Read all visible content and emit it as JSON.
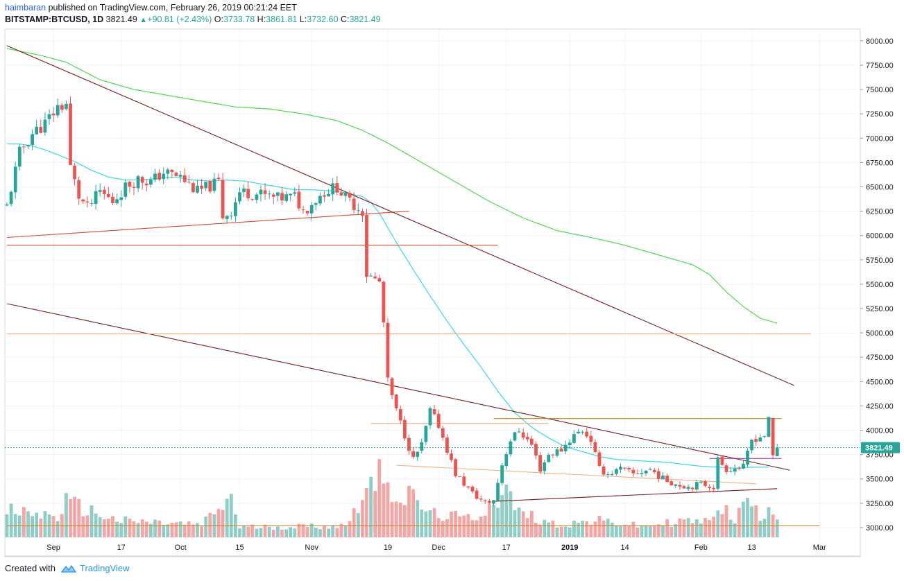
{
  "header": {
    "author": "haimbaran",
    "published_text": "published on TradingView.com, February 26, 2019 00:21:24 EET",
    "symbol": "BITSTAMP:BTCUSD, 1D",
    "last": "3821.49",
    "change": "+90.81 (+2.43%)",
    "o_label": "O:",
    "o_value": "3733.78",
    "h_label": "H:",
    "h_value": "3861.81",
    "l_label": "L:",
    "l_value": "3732.60",
    "c_label": "C:",
    "c_value": "3821.49"
  },
  "footer": {
    "created_with": "Created with",
    "brand": "TradingView"
  },
  "colors": {
    "up": "#26a69a",
    "down": "#ef5350",
    "vol_up": "#8fcdc7",
    "vol_down": "#f5a5a3",
    "ma50": "#34d8e6",
    "ma200": "#4cd94c",
    "trend_dark": "#7b1a1a",
    "trend_red": "#d84a2c",
    "level_orange": "#f5b07a",
    "level_gold": "#b8860b",
    "last_price": "#26a69a"
  },
  "chart_data": {
    "type": "candlestick",
    "title": "BITSTAMP:BTCUSD, 1D",
    "ylim": [
      2900,
      8120
    ],
    "y_ticks": [
      3000,
      3250,
      3500,
      3750,
      4000,
      4250,
      4500,
      4750,
      5000,
      5250,
      5500,
      5750,
      6000,
      6250,
      6500,
      6750,
      7000,
      7250,
      7500,
      7750,
      8000
    ],
    "y_tick_labels": [
      "3000.00",
      "3250.00",
      "3500.00",
      "3750.00",
      "4000.00",
      "4250.00",
      "4500.00",
      "4750.00",
      "5000.00",
      "5250.00",
      "5500.00",
      "5750.00",
      "6000.00",
      "6250.00",
      "6500.00",
      "6750.00",
      "7000.00",
      "7250.00",
      "7500.00",
      "7750.00",
      "8000.00"
    ],
    "x_tick_labels": [
      {
        "day": 11,
        "label": "Sep"
      },
      {
        "day": 27,
        "label": "17"
      },
      {
        "day": 41,
        "label": "Oct"
      },
      {
        "day": 55,
        "label": "15"
      },
      {
        "day": 72,
        "label": "Nov"
      },
      {
        "day": 90,
        "label": "19"
      },
      {
        "day": 102,
        "label": "Dec"
      },
      {
        "day": 118,
        "label": "17"
      },
      {
        "day": 133,
        "label": "2019"
      },
      {
        "day": 146,
        "label": "14"
      },
      {
        "day": 164,
        "label": "Feb"
      },
      {
        "day": 176,
        "label": "13"
      },
      {
        "day": 192,
        "label": "Mar"
      }
    ],
    "last_price": 3821.49,
    "last_price_label": "3821.49",
    "price_path": [
      [
        0,
        6300
      ],
      [
        3,
        6850
      ],
      [
        6,
        7050
      ],
      [
        9,
        7150
      ],
      [
        12,
        7320
      ],
      [
        14,
        7350
      ],
      [
        15,
        6700
      ],
      [
        17,
        6400
      ],
      [
        19,
        6280
      ],
      [
        22,
        6450
      ],
      [
        25,
        6350
      ],
      [
        28,
        6500
      ],
      [
        31,
        6580
      ],
      [
        34,
        6550
      ],
      [
        37,
        6650
      ],
      [
        41,
        6600
      ],
      [
        45,
        6450
      ],
      [
        50,
        6550
      ],
      [
        51,
        6200
      ],
      [
        53,
        6250
      ],
      [
        55,
        6450
      ],
      [
        60,
        6420
      ],
      [
        64,
        6380
      ],
      [
        68,
        6400
      ],
      [
        70,
        6250
      ],
      [
        75,
        6450
      ],
      [
        78,
        6500
      ],
      [
        80,
        6380
      ],
      [
        84,
        6250
      ],
      [
        85,
        5600
      ],
      [
        88,
        5520
      ],
      [
        89,
        5100
      ],
      [
        90,
        4500
      ],
      [
        92,
        4200
      ],
      [
        94,
        3950
      ],
      [
        96,
        3700
      ],
      [
        98,
        3850
      ],
      [
        100,
        4200
      ],
      [
        102,
        4050
      ],
      [
        104,
        3800
      ],
      [
        106,
        3550
      ],
      [
        108,
        3450
      ],
      [
        110,
        3350
      ],
      [
        113,
        3250
      ],
      [
        115,
        3280
      ],
      [
        117,
        3650
      ],
      [
        119,
        3900
      ],
      [
        121,
        4000
      ],
      [
        124,
        3850
      ],
      [
        126,
        3600
      ],
      [
        128,
        3750
      ],
      [
        131,
        3800
      ],
      [
        134,
        3950
      ],
      [
        136,
        4000
      ],
      [
        138,
        3900
      ],
      [
        140,
        3600
      ],
      [
        142,
        3550
      ],
      [
        145,
        3600
      ],
      [
        148,
        3550
      ],
      [
        152,
        3600
      ],
      [
        155,
        3500
      ],
      [
        158,
        3450
      ],
      [
        161,
        3420
      ],
      [
        164,
        3450
      ],
      [
        167,
        3420
      ],
      [
        168,
        3700
      ],
      [
        170,
        3600
      ],
      [
        174,
        3620
      ],
      [
        176,
        3900
      ],
      [
        179,
        3950
      ],
      [
        180,
        4100
      ],
      [
        181,
        3731
      ],
      [
        182,
        3821.49
      ]
    ],
    "ma50_path": [
      [
        0,
        6940
      ],
      [
        3,
        6940
      ],
      [
        6,
        6920
      ],
      [
        9,
        6880
      ],
      [
        12,
        6830
      ],
      [
        16,
        6760
      ],
      [
        20,
        6670
      ],
      [
        24,
        6600
      ],
      [
        28,
        6570
      ],
      [
        32,
        6570
      ],
      [
        36,
        6590
      ],
      [
        40,
        6600
      ],
      [
        44,
        6570
      ],
      [
        48,
        6560
      ],
      [
        52,
        6570
      ],
      [
        56,
        6560
      ],
      [
        60,
        6530
      ],
      [
        64,
        6500
      ],
      [
        68,
        6470
      ],
      [
        72,
        6470
      ],
      [
        76,
        6460
      ],
      [
        80,
        6440
      ],
      [
        84,
        6400
      ],
      [
        86,
        6340
      ],
      [
        88,
        6230
      ],
      [
        92,
        5930
      ],
      [
        96,
        5650
      ],
      [
        100,
        5380
      ],
      [
        104,
        5120
      ],
      [
        108,
        4880
      ],
      [
        112,
        4650
      ],
      [
        116,
        4400
      ],
      [
        120,
        4180
      ],
      [
        124,
        4030
      ],
      [
        128,
        3920
      ],
      [
        132,
        3830
      ],
      [
        136,
        3780
      ],
      [
        140,
        3730
      ],
      [
        144,
        3700
      ],
      [
        148,
        3690
      ],
      [
        152,
        3680
      ],
      [
        156,
        3670
      ],
      [
        160,
        3650
      ],
      [
        164,
        3630
      ],
      [
        168,
        3620
      ],
      [
        172,
        3610
      ],
      [
        176,
        3620
      ],
      [
        180,
        3620
      ]
    ],
    "ma200_path": [
      [
        0,
        7920
      ],
      [
        8,
        7850
      ],
      [
        14,
        7780
      ],
      [
        22,
        7600
      ],
      [
        30,
        7500
      ],
      [
        38,
        7440
      ],
      [
        46,
        7380
      ],
      [
        54,
        7320
      ],
      [
        62,
        7300
      ],
      [
        70,
        7250
      ],
      [
        78,
        7180
      ],
      [
        84,
        7080
      ],
      [
        90,
        6950
      ],
      [
        98,
        6750
      ],
      [
        106,
        6550
      ],
      [
        114,
        6350
      ],
      [
        122,
        6180
      ],
      [
        130,
        6050
      ],
      [
        138,
        5980
      ],
      [
        146,
        5900
      ],
      [
        154,
        5800
      ],
      [
        162,
        5700
      ],
      [
        166,
        5600
      ],
      [
        170,
        5420
      ],
      [
        174,
        5270
      ],
      [
        178,
        5150
      ],
      [
        182,
        5100
      ]
    ],
    "volume_path": [
      [
        0,
        0.32
      ],
      [
        12,
        0.25
      ],
      [
        14,
        0.42
      ],
      [
        26,
        0.2
      ],
      [
        46,
        0.15
      ],
      [
        53,
        0.48
      ],
      [
        55,
        0.12
      ],
      [
        80,
        0.14
      ],
      [
        83,
        0.4
      ],
      [
        85,
        0.68
      ],
      [
        87,
        0.58
      ],
      [
        89,
        0.9
      ],
      [
        91,
        0.55
      ],
      [
        93,
        0.45
      ],
      [
        95,
        0.5
      ],
      [
        97,
        0.42
      ],
      [
        100,
        0.28
      ],
      [
        110,
        0.22
      ],
      [
        118,
        0.55
      ],
      [
        121,
        0.3
      ],
      [
        130,
        0.15
      ],
      [
        140,
        0.2
      ],
      [
        150,
        0.13
      ],
      [
        160,
        0.2
      ],
      [
        166,
        0.18
      ],
      [
        168,
        0.42
      ],
      [
        172,
        0.2
      ],
      [
        175,
        0.48
      ],
      [
        178,
        0.22
      ],
      [
        180,
        0.4
      ],
      [
        182,
        0.28
      ]
    ],
    "annotations": [
      {
        "name": "upper-downtrend",
        "from": [
          0,
          7950
        ],
        "to": [
          186,
          4460
        ]
      },
      {
        "name": "lower-downtrend",
        "from": [
          0,
          5300
        ],
        "to": [
          185,
          3590
        ]
      },
      {
        "name": "rising-support-upper",
        "from": [
          0,
          5980
        ],
        "to": [
          95,
          6250
        ]
      },
      {
        "name": "horizontal-level-5900",
        "from": [
          0,
          5900
        ],
        "to": [
          116,
          5900
        ]
      },
      {
        "name": "horizontal-level-5000",
        "from": [
          0,
          4990
        ],
        "to": [
          190,
          4990
        ]
      },
      {
        "name": "horizontal-level-4120",
        "from": [
          115,
          4120
        ],
        "to": [
          183,
          4120
        ]
      },
      {
        "name": "horizontal-level-4070",
        "from": [
          86,
          4070
        ],
        "to": [
          128,
          4070
        ]
      },
      {
        "name": "channel-upper-orange",
        "from": [
          92,
          3640
        ],
        "to": [
          177,
          3450
        ]
      },
      {
        "name": "rising-support-lower",
        "from": [
          115,
          3270
        ],
        "to": [
          182,
          3400
        ]
      },
      {
        "name": "purple-box-top",
        "from": [
          166,
          3710
        ],
        "to": [
          183,
          3710
        ]
      },
      {
        "name": "horizontal-level-3020",
        "from": [
          0,
          3020
        ],
        "to": [
          192,
          3020
        ]
      }
    ]
  }
}
